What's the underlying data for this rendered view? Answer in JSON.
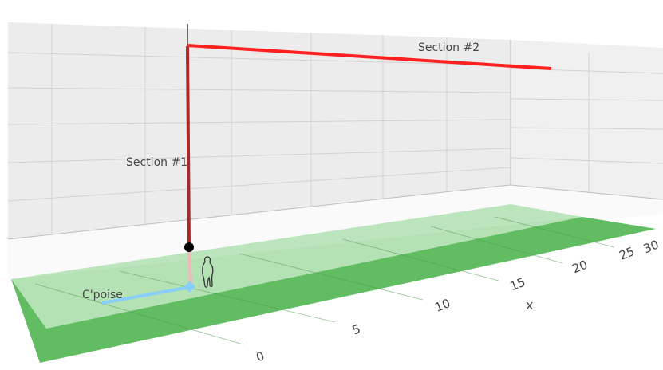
{
  "chart_data": {
    "type": "3d-line",
    "axes": {
      "x": {
        "label": "x",
        "ticks": [
          "0",
          "5",
          "10",
          "15",
          "20",
          "25",
          "30"
        ],
        "range": [
          0,
          30
        ]
      }
    },
    "grid": true,
    "annotations": [
      {
        "text": "C'poise"
      },
      {
        "text": "Section #1"
      },
      {
        "text": "Section #2"
      }
    ],
    "series": [
      {
        "kind": "counterpoise",
        "color": "#87cefa"
      },
      {
        "kind": "lower-mast",
        "color": "#f4b6b8"
      },
      {
        "kind": "section-1",
        "color": "#a52a2a"
      },
      {
        "kind": "section-2",
        "color": "#ff2020"
      },
      {
        "kind": "feed-point",
        "color": "#000000"
      },
      {
        "kind": "person-silhouette",
        "color": "#333333"
      },
      {
        "kind": "ground-plane-light",
        "color": "#b9e4b9"
      },
      {
        "kind": "ground-plane-dark",
        "color": "#62bd62"
      }
    ]
  }
}
